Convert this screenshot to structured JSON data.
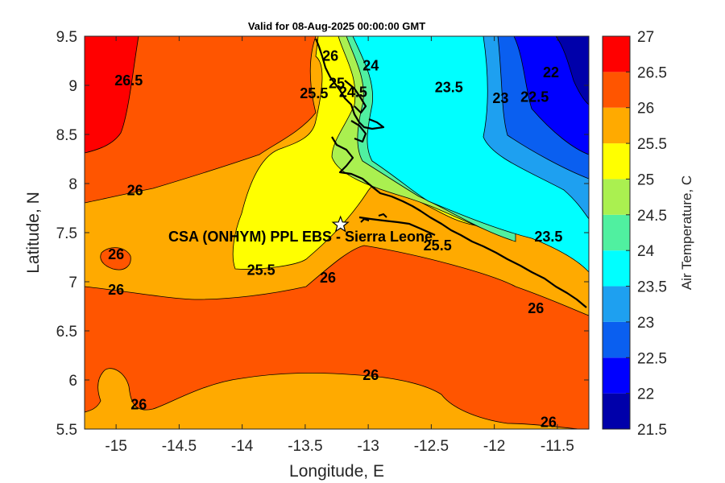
{
  "chart_data": {
    "type": "contour",
    "title": "Valid for 08-Aug-2025 00:00:00 GMT",
    "xlabel": "Longitude, E",
    "ylabel": "Latitude, N",
    "xlim": [
      -15.25,
      -11.25
    ],
    "ylim": [
      5.5,
      9.5
    ],
    "x_ticks": [
      "-15",
      "-14.5",
      "-14",
      "-13.5",
      "-13",
      "-12.5",
      "-12",
      "-11.5"
    ],
    "x_tick_values": [
      -15,
      -14.5,
      -14,
      -13.5,
      -13,
      -12.5,
      -12,
      -11.5
    ],
    "y_ticks": [
      "5.5",
      "6",
      "6.5",
      "7",
      "7.5",
      "8",
      "8.5",
      "9",
      "9.5"
    ],
    "y_tick_values": [
      5.5,
      6,
      6.5,
      7,
      7.5,
      8,
      8.5,
      9,
      9.5
    ],
    "colorbar": {
      "label": "Air Temperature, C",
      "levels": [
        21.5,
        22,
        22.5,
        23,
        23.5,
        24,
        24.5,
        25,
        25.5,
        26,
        26.5,
        27
      ],
      "tick_labels": [
        "21.5",
        "22",
        "22.5",
        "23",
        "23.5",
        "24",
        "24.5",
        "25",
        "25.5",
        "26",
        "26.5",
        "27"
      ],
      "colors": [
        "#0000aa",
        "#0000ff",
        "#0a5ff0",
        "#1ea0f0",
        "#00ffff",
        "#50f0a0",
        "#aaf050",
        "#ffff00",
        "#ffaa00",
        "#ff5500",
        "#ff0000"
      ]
    },
    "site": {
      "label": "CSA (ONHYM) PPL EBS - Sierra Leone",
      "lon": -13.22,
      "lat": 7.58,
      "marker": "star"
    },
    "contour_labels": [
      {
        "text": "26.5",
        "lon": -14.9,
        "lat": 9.05
      },
      {
        "text": "26",
        "lon": -13.3,
        "lat": 9.3
      },
      {
        "text": "26",
        "lon": -14.85,
        "lat": 7.93
      },
      {
        "text": "26",
        "lon": -15.0,
        "lat": 7.28
      },
      {
        "text": "26",
        "lon": -15.0,
        "lat": 6.92
      },
      {
        "text": "26",
        "lon": -13.32,
        "lat": 7.04
      },
      {
        "text": "26",
        "lon": -12.98,
        "lat": 6.05
      },
      {
        "text": "26",
        "lon": -14.82,
        "lat": 5.75
      },
      {
        "text": "26",
        "lon": -11.67,
        "lat": 6.73
      },
      {
        "text": "26",
        "lon": -11.57,
        "lat": 5.57
      },
      {
        "text": "25.5",
        "lon": -13.43,
        "lat": 8.92
      },
      {
        "text": "25.5",
        "lon": -13.85,
        "lat": 7.12
      },
      {
        "text": "25.5",
        "lon": -12.45,
        "lat": 7.37
      },
      {
        "text": "25",
        "lon": -13.25,
        "lat": 9.02
      },
      {
        "text": "24.5",
        "lon": -13.12,
        "lat": 8.93
      },
      {
        "text": "24",
        "lon": -12.98,
        "lat": 9.2
      },
      {
        "text": "23.5",
        "lon": -12.36,
        "lat": 8.98
      },
      {
        "text": "23.5",
        "lon": -11.57,
        "lat": 7.46
      },
      {
        "text": "23",
        "lon": -11.95,
        "lat": 8.87
      },
      {
        "text": "22.5",
        "lon": -11.68,
        "lat": 8.88
      },
      {
        "text": "22",
        "lon": -11.55,
        "lat": 9.13
      }
    ]
  }
}
